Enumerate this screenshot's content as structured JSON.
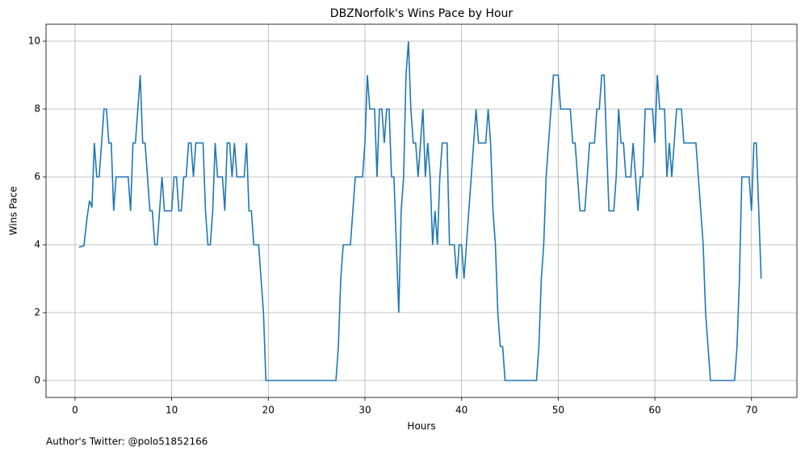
{
  "chart_data": {
    "type": "line",
    "title": "DBZNorfolk's Wins Pace by Hour",
    "x_label": "Hours",
    "y_label": "Wins Pace",
    "footnote": "Author's Twitter: @polo51852166",
    "color": "#1f77b4",
    "grid": true,
    "xlim": [
      -3.0,
      74.7
    ],
    "ylim": [
      -0.5,
      10.5
    ],
    "xticks": [
      0,
      10,
      20,
      30,
      40,
      50,
      60,
      70
    ],
    "yticks": [
      0,
      2,
      4,
      6,
      8,
      10
    ],
    "x": [
      0.42,
      0.92,
      1.25,
      1.5,
      1.75,
      2.0,
      2.25,
      2.5,
      2.75,
      3.0,
      3.25,
      3.5,
      3.75,
      4.0,
      4.25,
      5.5,
      5.75,
      6.0,
      6.25,
      6.5,
      6.75,
      7.0,
      7.25,
      7.75,
      8.0,
      8.25,
      8.5,
      9.0,
      9.25,
      9.75,
      10.0,
      10.25,
      10.5,
      10.75,
      11.0,
      11.25,
      11.5,
      11.75,
      12.0,
      12.25,
      12.5,
      13.25,
      13.5,
      13.75,
      14.0,
      14.25,
      14.5,
      14.75,
      15.25,
      15.5,
      15.75,
      16.0,
      16.25,
      16.5,
      16.75,
      17.5,
      17.75,
      18.0,
      18.25,
      18.5,
      19.0,
      19.5,
      19.75,
      27.0,
      27.25,
      27.5,
      27.75,
      28.5,
      29.0,
      29.75,
      30.0,
      30.25,
      30.5,
      31.0,
      31.25,
      31.5,
      31.75,
      32.0,
      32.25,
      32.5,
      32.75,
      33.0,
      33.25,
      33.5,
      33.75,
      34.0,
      34.25,
      34.5,
      34.75,
      35.0,
      35.25,
      35.5,
      35.75,
      36.0,
      36.25,
      36.5,
      36.75,
      37.0,
      37.25,
      37.5,
      37.75,
      38.0,
      38.5,
      38.75,
      39.25,
      39.5,
      39.75,
      40.0,
      40.25,
      40.5,
      40.75,
      41.0,
      41.25,
      41.5,
      41.75,
      42.5,
      42.75,
      43.0,
      43.25,
      43.5,
      43.75,
      44.0,
      44.25,
      44.5,
      47.75,
      48.0,
      48.25,
      48.5,
      48.75,
      49.0,
      49.25,
      49.5,
      50.0,
      50.25,
      51.25,
      51.5,
      51.75,
      52.0,
      52.25,
      52.75,
      53.0,
      53.25,
      53.75,
      54.0,
      54.25,
      54.5,
      54.75,
      55.0,
      55.25,
      55.75,
      56.0,
      56.25,
      56.5,
      56.75,
      57.0,
      57.5,
      57.75,
      58.0,
      58.25,
      58.5,
      58.75,
      59.0,
      59.75,
      60.0,
      60.25,
      60.5,
      61.0,
      61.25,
      61.5,
      61.75,
      62.0,
      62.25,
      62.75,
      63.0,
      64.25,
      64.5,
      64.75,
      65.0,
      65.25,
      65.5,
      65.75,
      68.25,
      68.5,
      68.75,
      69.0,
      69.75,
      70.0,
      70.25,
      70.5,
      71.0
    ],
    "values": [
      3.93,
      3.97,
      4.8,
      5.3,
      5.1,
      7,
      6,
      6,
      7,
      8,
      8,
      7,
      7,
      5,
      6,
      6,
      5,
      7,
      7,
      8,
      9,
      7,
      7,
      5,
      5,
      4,
      4,
      6,
      5,
      5,
      5,
      6,
      6,
      5,
      5,
      6,
      6,
      7,
      7,
      6,
      7,
      7,
      5,
      4,
      4,
      5,
      7,
      6,
      6,
      5,
      7,
      7,
      6,
      7,
      6,
      6,
      7,
      5,
      5,
      4,
      4,
      2,
      0,
      0,
      1,
      3,
      4,
      4,
      6,
      6,
      7,
      9,
      8,
      8,
      6,
      8,
      8,
      7,
      8,
      8,
      6,
      6,
      4,
      2,
      5,
      6,
      9,
      10,
      8,
      7,
      7,
      6,
      7,
      8,
      6,
      7,
      6,
      4,
      5,
      4,
      6,
      7,
      7,
      4,
      4,
      3,
      4,
      4,
      3,
      4,
      5,
      6,
      7,
      8,
      7,
      7,
      8,
      7,
      5,
      4,
      2,
      1,
      1,
      0,
      0,
      1,
      3,
      4,
      6,
      7,
      8,
      9,
      9,
      8,
      8,
      7,
      7,
      6,
      5,
      5,
      6,
      7,
      7,
      8,
      8,
      9,
      9,
      7,
      5,
      5,
      6,
      8,
      7,
      7,
      6,
      6,
      7,
      6,
      5,
      6,
      6,
      8,
      8,
      7,
      9,
      8,
      8,
      6,
      7,
      6,
      7,
      8,
      8,
      7,
      7,
      6,
      5,
      4,
      2,
      1,
      0,
      0,
      1,
      3,
      6,
      6,
      5,
      7,
      7,
      3
    ]
  }
}
